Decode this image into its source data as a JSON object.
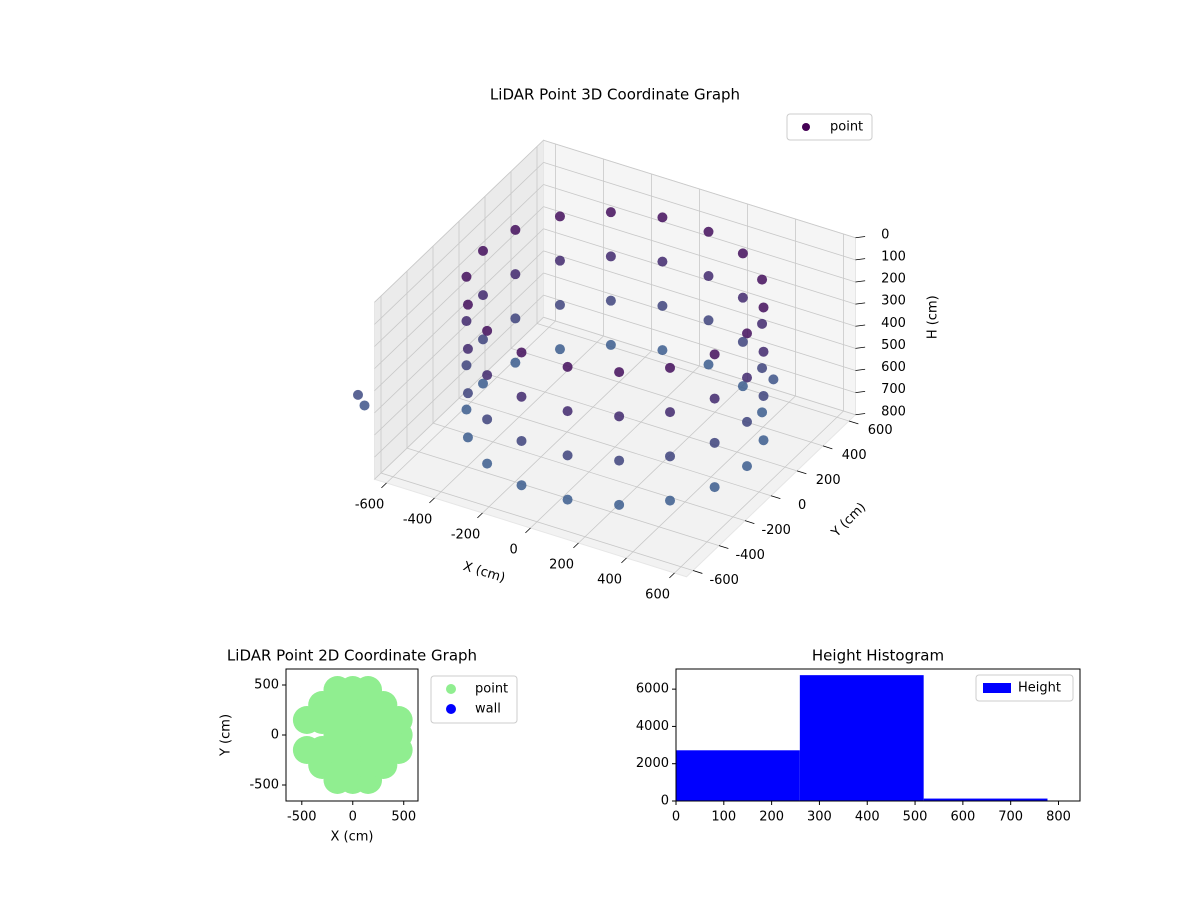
{
  "chart_data": [
    {
      "type": "scatter3d",
      "title": "LiDAR Point 3D Coordinate Graph",
      "xlabel": "X (cm)",
      "ylabel": "Y (cm)",
      "zlabel": "H (cm)",
      "xlim": [
        -650,
        650
      ],
      "ylim": [
        -650,
        650
      ],
      "zlim": [
        0,
        800
      ],
      "zinverted": true,
      "xticks": [
        -600,
        -400,
        -200,
        0,
        200,
        400,
        600
      ],
      "yticks": [
        -600,
        -400,
        -200,
        0,
        200,
        400,
        600
      ],
      "zticks": [
        0,
        100,
        200,
        300,
        400,
        500,
        600,
        700,
        800
      ],
      "legend": "upper right",
      "grid": true,
      "series": [
        {
          "name": "point",
          "color": "#440154",
          "x": [
            550,
            550,
            550,
            550,
            517,
            517,
            517,
            517,
            421,
            421,
            421,
            421,
            275,
            275,
            275,
            275,
            96,
            96,
            96,
            96,
            -96,
            -96,
            -96,
            -96,
            -275,
            -275,
            -275,
            -275,
            -421,
            -421,
            -421,
            -421,
            -517,
            -517,
            -517,
            -517,
            -550,
            -550,
            -550,
            -550,
            -517,
            -517,
            -517,
            -517,
            -421,
            -421,
            -421,
            -421,
            -275,
            -275,
            -275,
            -275,
            -96,
            -96,
            -96,
            -96,
            96,
            96,
            96,
            96,
            275,
            275,
            275,
            275,
            421,
            421,
            421,
            421,
            517,
            517,
            517,
            517,
            -800,
            -800,
            400
          ],
          "y": [
            0,
            0,
            0,
            0,
            188,
            188,
            188,
            188,
            354,
            354,
            354,
            354,
            476,
            476,
            476,
            476,
            542,
            542,
            542,
            542,
            542,
            542,
            542,
            542,
            476,
            476,
            476,
            476,
            354,
            354,
            354,
            354,
            188,
            188,
            188,
            188,
            0,
            0,
            0,
            0,
            -188,
            -188,
            -188,
            -188,
            -354,
            -354,
            -354,
            -354,
            -476,
            -476,
            -476,
            -476,
            -542,
            -542,
            -542,
            -542,
            -542,
            -542,
            -542,
            -542,
            -476,
            -476,
            -476,
            -476,
            -354,
            -354,
            -354,
            -354,
            -188,
            -188,
            -188,
            -188,
            -500,
            -450,
            480
          ],
          "z": [
            100,
            300,
            500,
            700,
            100,
            300,
            500,
            700,
            100,
            300,
            500,
            700,
            100,
            300,
            500,
            700,
            100,
            300,
            500,
            700,
            100,
            300,
            500,
            700,
            100,
            300,
            500,
            700,
            100,
            300,
            500,
            700,
            100,
            300,
            500,
            700,
            100,
            300,
            500,
            700,
            100,
            300,
            500,
            700,
            100,
            300,
            500,
            700,
            100,
            300,
            500,
            700,
            100,
            300,
            500,
            700,
            100,
            300,
            500,
            700,
            100,
            300,
            500,
            700,
            100,
            300,
            500,
            700,
            100,
            300,
            500,
            700,
            554,
            630,
            629
          ]
        }
      ]
    },
    {
      "type": "scatter",
      "title": "LiDAR Point 2D Coordinate Graph",
      "xlabel": "X (cm)",
      "ylabel": "Y (cm)",
      "xlim": [
        -655,
        640
      ],
      "ylim": [
        -660,
        660
      ],
      "xticks": [
        -500,
        0,
        500
      ],
      "yticks": [
        -500,
        0,
        500
      ],
      "legend": "outside upper left",
      "series": [
        {
          "name": "point",
          "color": "#90ee90",
          "x": [
            -450,
            -450,
            -300,
            -300,
            -300,
            -300,
            -150,
            -150,
            -150,
            -150,
            -150,
            -150,
            -150,
            0,
            0,
            0,
            0,
            0,
            0,
            0,
            150,
            150,
            150,
            150,
            150,
            150,
            150,
            300,
            300,
            300,
            300,
            300,
            450,
            450,
            450
          ],
          "y": [
            -150,
            150,
            -300,
            -150,
            150,
            300,
            -450,
            -300,
            -150,
            0,
            150,
            300,
            450,
            -450,
            -300,
            -150,
            0,
            150,
            300,
            450,
            -450,
            -300,
            -150,
            0,
            150,
            300,
            450,
            -300,
            -150,
            0,
            150,
            300,
            -150,
            0,
            150
          ]
        },
        {
          "name": "wall",
          "color": "#0000ff",
          "x": [],
          "y": []
        }
      ]
    },
    {
      "type": "histogram",
      "title": "Height Histogram",
      "bins": [
        0,
        259,
        518,
        777
      ],
      "counts": [
        2720,
        6750,
        130
      ],
      "name": "Height",
      "color": "#0000ff",
      "xlim": [
        0,
        845
      ],
      "ylim": [
        0,
        7080
      ],
      "xticks": [
        0,
        100,
        200,
        300,
        400,
        500,
        600,
        700,
        800
      ],
      "yticks": [
        0,
        2000,
        4000,
        6000
      ],
      "legend": "upper right"
    }
  ]
}
